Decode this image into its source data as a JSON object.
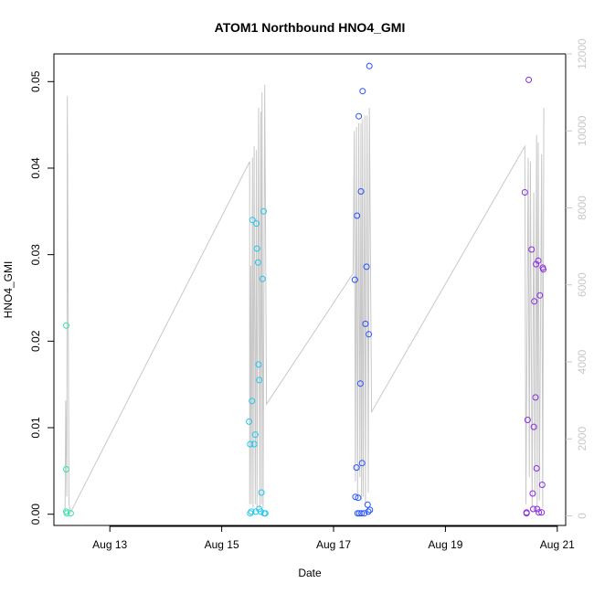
{
  "chart_data": {
    "type": "scatter",
    "title": "ATOM1 Northbound HNO4_GMI",
    "xlabel": "Date",
    "ylabel": "HNO4_GMI",
    "x_ticks": [
      "Aug 13",
      "Aug 15",
      "Aug 17",
      "Aug 19",
      "Aug 21"
    ],
    "x_tick_values": [
      13,
      15,
      17,
      19,
      21
    ],
    "xlim": [
      12.0,
      21.15
    ],
    "y_ticks": [
      "0.00",
      "0.01",
      "0.02",
      "0.03",
      "0.04",
      "0.05"
    ],
    "ylim": [
      -0.0013,
      0.0532
    ],
    "y2_ticks": [
      "0",
      "2000",
      "4000",
      "6000",
      "8000",
      "10000",
      "12000"
    ],
    "y2lim": [
      -250,
      12000
    ],
    "colors": {
      "flight1": "#33e3a7",
      "flight2": "#21c6ee",
      "flight3": "#2550ff",
      "flight4": "#8a2be2",
      "altitude": "#c8c8c8",
      "axis": "#000000",
      "y2axis": "#c8c8c8"
    },
    "series": [
      {
        "color": "#33e3a7",
        "points": [
          [
            12.22,
            0.0218
          ],
          [
            12.22,
            0.0052
          ],
          [
            12.22,
            0.0003
          ],
          [
            12.23,
            0.0001
          ],
          [
            12.3,
            0.0001
          ]
        ]
      },
      {
        "color": "#21c6ee",
        "points": [
          [
            15.49,
            0.0107
          ],
          [
            15.51,
            0.0081
          ],
          [
            15.51,
            0.0001
          ],
          [
            15.53,
            0.0003
          ],
          [
            15.54,
            0.0131
          ],
          [
            15.55,
            0.034
          ],
          [
            15.58,
            0.0081
          ],
          [
            15.6,
            0.0092
          ],
          [
            15.61,
            0.0003
          ],
          [
            15.62,
            0.0336
          ],
          [
            15.63,
            0.0307
          ],
          [
            15.65,
            0.0291
          ],
          [
            15.66,
            0.0173
          ],
          [
            15.67,
            0.0155
          ],
          [
            15.67,
            0.0006
          ],
          [
            15.7,
            0.0003
          ],
          [
            15.71,
            0.0025
          ],
          [
            15.73,
            0.0272
          ],
          [
            15.75,
            0.035
          ],
          [
            15.76,
            0.0001
          ],
          [
            15.78,
            0.0001
          ]
        ]
      },
      {
        "color": "#2550ff",
        "points": [
          [
            17.38,
            0.0271
          ],
          [
            17.39,
            0.002
          ],
          [
            17.41,
            0.0054
          ],
          [
            17.42,
            0.0345
          ],
          [
            17.43,
            0.0001
          ],
          [
            17.44,
            0.0019
          ],
          [
            17.45,
            0.046
          ],
          [
            17.46,
            0.0001
          ],
          [
            17.48,
            0.0151
          ],
          [
            17.49,
            0.0373
          ],
          [
            17.5,
            0.0001
          ],
          [
            17.51,
            0.0059
          ],
          [
            17.52,
            0.0489
          ],
          [
            17.55,
            0.0001
          ],
          [
            17.57,
            0.022
          ],
          [
            17.59,
            0.0286
          ],
          [
            17.61,
            0.0011
          ],
          [
            17.62,
            0.0003
          ],
          [
            17.63,
            0.0208
          ],
          [
            17.64,
            0.0518
          ],
          [
            17.65,
            0.0005
          ]
        ]
      },
      {
        "color": "#8a2be2",
        "points": [
          [
            20.42,
            0.0372
          ],
          [
            20.45,
            0.0001
          ],
          [
            20.45,
            0.0002
          ],
          [
            20.47,
            0.0109
          ],
          [
            20.49,
            0.0502
          ],
          [
            20.54,
            0.0306
          ],
          [
            20.56,
            0.0024
          ],
          [
            20.57,
            0.0006
          ],
          [
            20.58,
            0.0101
          ],
          [
            20.59,
            0.0246
          ],
          [
            20.61,
            0.0135
          ],
          [
            20.62,
            0.0289
          ],
          [
            20.63,
            0.0053
          ],
          [
            20.64,
            0.0006
          ],
          [
            20.66,
            0.0293
          ],
          [
            20.67,
            0.0002
          ],
          [
            20.69,
            0.0253
          ],
          [
            20.72,
            0.0002
          ],
          [
            20.73,
            0.0034
          ],
          [
            20.74,
            0.0285
          ],
          [
            20.75,
            0.0283
          ]
        ]
      }
    ],
    "altitude_line": [
      [
        12.2,
        120
      ],
      [
        12.21,
        3000
      ],
      [
        12.23,
        500
      ],
      [
        12.24,
        10900
      ],
      [
        12.27,
        300
      ],
      [
        12.3,
        100
      ],
      [
        15.5,
        9200
      ],
      [
        15.5,
        300
      ],
      [
        15.52,
        6500
      ],
      [
        15.53,
        300
      ],
      [
        15.55,
        9300
      ],
      [
        15.56,
        200
      ],
      [
        15.58,
        9600
      ],
      [
        15.6,
        300
      ],
      [
        15.62,
        9500
      ],
      [
        15.63,
        200
      ],
      [
        15.66,
        10600
      ],
      [
        15.68,
        200
      ],
      [
        15.7,
        10500
      ],
      [
        15.71,
        300
      ],
      [
        15.72,
        11000
      ],
      [
        15.74,
        200
      ],
      [
        15.77,
        11200
      ],
      [
        15.8,
        2900
      ],
      [
        17.35,
        6300
      ],
      [
        17.37,
        10000
      ],
      [
        17.39,
        900
      ],
      [
        17.41,
        10100
      ],
      [
        17.43,
        500
      ],
      [
        17.45,
        10200
      ],
      [
        17.47,
        1000
      ],
      [
        17.49,
        10200
      ],
      [
        17.5,
        400
      ],
      [
        17.52,
        10300
      ],
      [
        17.53,
        500
      ],
      [
        17.56,
        10400
      ],
      [
        17.57,
        300
      ],
      [
        17.6,
        10400
      ],
      [
        17.62,
        600
      ],
      [
        17.64,
        10600
      ],
      [
        17.68,
        2700
      ],
      [
        20.42,
        9600
      ],
      [
        20.44,
        300
      ],
      [
        20.48,
        9300
      ],
      [
        20.5,
        1000
      ],
      [
        20.52,
        9200
      ],
      [
        20.55,
        200
      ],
      [
        20.58,
        8400
      ],
      [
        20.6,
        500
      ],
      [
        20.63,
        9900
      ],
      [
        20.64,
        200
      ],
      [
        20.66,
        9700
      ],
      [
        20.68,
        400
      ],
      [
        20.72,
        9400
      ],
      [
        20.74,
        200
      ],
      [
        20.76,
        10600
      ]
    ]
  }
}
